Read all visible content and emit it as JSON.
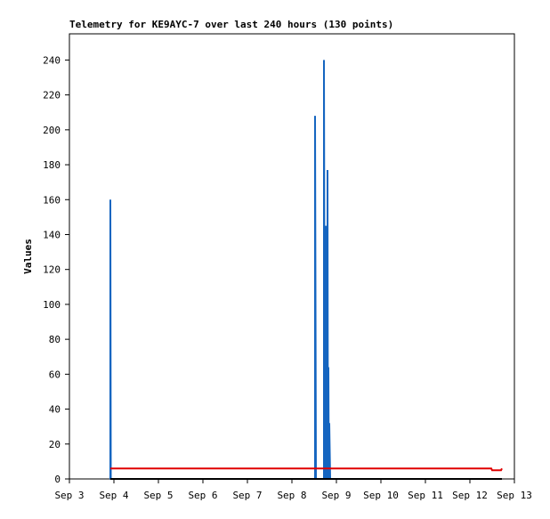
{
  "chart_data": {
    "type": "line",
    "title": "Telemetry for KE9AYC-7 over last 240 hours (130 points)",
    "y_label": "Values",
    "xlim": [
      3,
      13
    ],
    "xticks": [
      {
        "value": 3,
        "label": "Sep 3"
      },
      {
        "value": 4,
        "label": "Sep 4"
      },
      {
        "value": 5,
        "label": "Sep 5"
      },
      {
        "value": 6,
        "label": "Sep 6"
      },
      {
        "value": 7,
        "label": "Sep 7"
      },
      {
        "value": 8,
        "label": "Sep 8"
      },
      {
        "value": 9,
        "label": "Sep 9"
      },
      {
        "value": 10,
        "label": "Sep 10"
      },
      {
        "value": 11,
        "label": "Sep 11"
      },
      {
        "value": 12,
        "label": "Sep 12"
      },
      {
        "value": 13,
        "label": "Sep 13"
      }
    ],
    "ylim": [
      0,
      255
    ],
    "yticks": [
      0,
      20,
      40,
      60,
      80,
      100,
      120,
      140,
      160,
      180,
      200,
      220,
      240
    ],
    "grid": false,
    "series": [
      {
        "color": "#1565c0",
        "x": [
          3.92,
          3.92,
          3.93,
          8.52,
          8.52,
          8.54,
          8.72,
          8.72,
          8.74,
          8.76,
          8.76,
          8.78,
          8.8,
          8.8,
          8.81,
          8.82,
          8.82,
          8.83,
          8.84,
          8.84,
          8.86,
          12.72
        ],
        "values": [
          0,
          160,
          0,
          0,
          208,
          0,
          0,
          240,
          0,
          0,
          145,
          0,
          0,
          177,
          0,
          0,
          64,
          0,
          0,
          32,
          0,
          0
        ]
      },
      {
        "color": "#000000",
        "x": [
          3.92,
          12.72
        ],
        "values": [
          0,
          0
        ]
      },
      {
        "color": "#e00000",
        "x": [
          3.92,
          12.48,
          12.5,
          12.7,
          12.72
        ],
        "values": [
          6,
          6,
          5,
          5,
          6
        ]
      }
    ]
  }
}
